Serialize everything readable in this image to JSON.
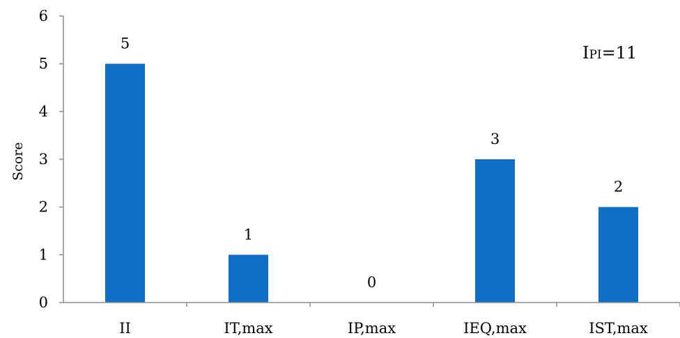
{
  "chart_data": {
    "type": "bar",
    "categories": [
      "II",
      "IT,max",
      "IP,max",
      "IEQ,max",
      "IST,max"
    ],
    "values": [
      5,
      1,
      0,
      3,
      2
    ],
    "data_labels": [
      "5",
      "1",
      "0",
      "3",
      "2"
    ],
    "title": "",
    "xlabel": "",
    "ylabel": "Score",
    "ylim": [
      0,
      6
    ],
    "yticks": [
      "0",
      "1",
      "2",
      "3",
      "4",
      "5",
      "6"
    ],
    "grid": false,
    "bar_color": "#0f6fc6",
    "annotation": {
      "main": "I",
      "sub": "PI",
      "suffix": "=11"
    }
  }
}
